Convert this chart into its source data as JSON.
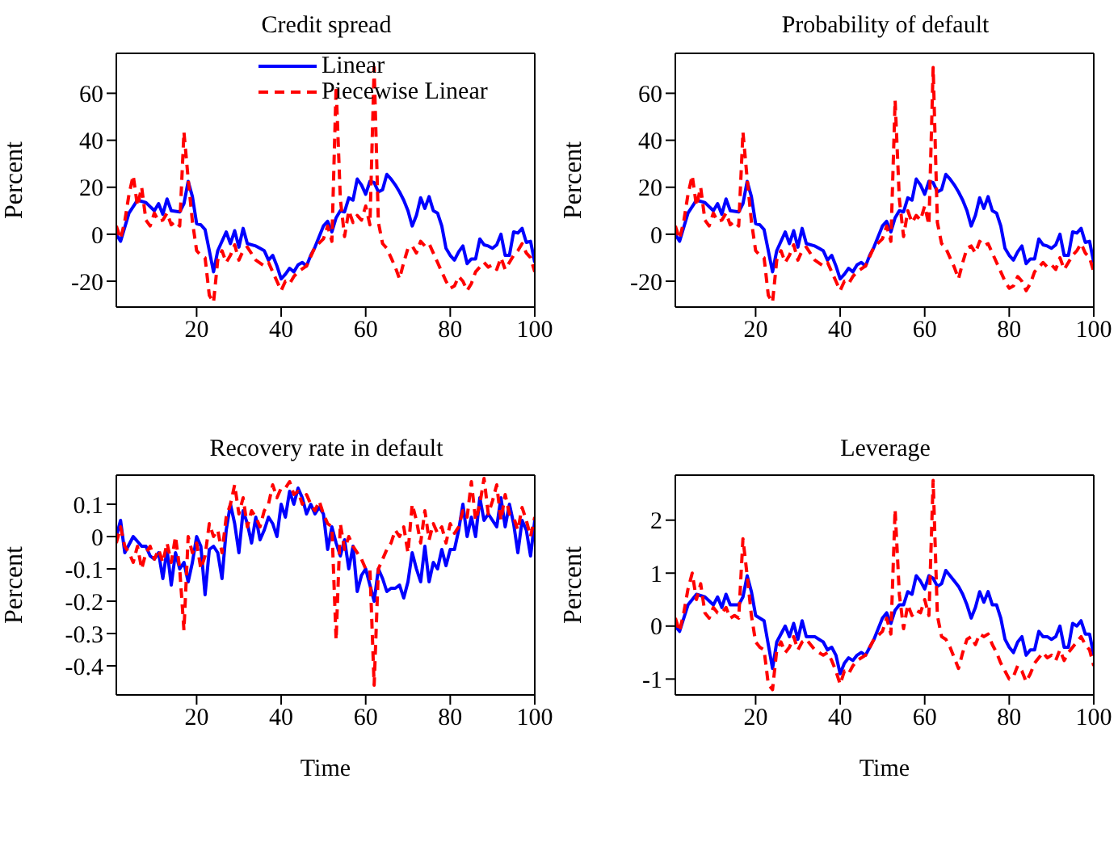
{
  "chart_data": [
    {
      "type": "line",
      "title": "Credit spread",
      "ylabel": "Percent",
      "xlim": [
        1,
        100
      ],
      "xticks": [
        20,
        40,
        60,
        80,
        100
      ],
      "ylim": [
        -31,
        77
      ],
      "yticks": [
        -20,
        0,
        20,
        40,
        60
      ],
      "legend": "top",
      "series": [
        {
          "name": "Linear",
          "color": "#0000ff",
          "line_style": "solid",
          "x": [
            1,
            2,
            4,
            6,
            8,
            10,
            11,
            12,
            13,
            14,
            16,
            17,
            18,
            19,
            20,
            21,
            22,
            24,
            25,
            27,
            28,
            29,
            30,
            31,
            32,
            34,
            35,
            36,
            37,
            38,
            39,
            40,
            41,
            42,
            43,
            44,
            45,
            46,
            47,
            48,
            50,
            51,
            52,
            53,
            54,
            55,
            56,
            57,
            58,
            59,
            60,
            61,
            62,
            63,
            64,
            65,
            66,
            67,
            68,
            69,
            70,
            71,
            72,
            73,
            74,
            75,
            76,
            77,
            78,
            79,
            80,
            81,
            82,
            83,
            84,
            85,
            86,
            87,
            88,
            89,
            90,
            91,
            92,
            93,
            94,
            95,
            96,
            97,
            98,
            99,
            100
          ],
          "values": [
            0,
            -3,
            9,
            14.5,
            13.5,
            10,
            13,
            8.5,
            15,
            10,
            9.5,
            13,
            22.5,
            16,
            4.5,
            4,
            2,
            -16,
            -7,
            1,
            -4,
            1.5,
            -5.5,
            2.5,
            -4,
            -5,
            -6,
            -7,
            -11,
            -9,
            -13.5,
            -19,
            -17,
            -14.5,
            -16,
            -13,
            -12,
            -13.5,
            -9,
            -5.5,
            3.5,
            5.5,
            1,
            7,
            10,
            9.5,
            15.5,
            14.5,
            23.5,
            21,
            17,
            22.5,
            22,
            18,
            19,
            25.5,
            23.5,
            21,
            18,
            14.5,
            10,
            3.5,
            8,
            15.5,
            11,
            16,
            10,
            9,
            3.5,
            -6,
            -9,
            -11,
            -7.5,
            -5,
            -12.5,
            -10.5,
            -10.5,
            -2,
            -4.5,
            -5,
            -6,
            -4.5,
            0,
            -9,
            -9,
            1,
            0.5,
            2.5,
            -3.5,
            -3,
            -12
          ]
        },
        {
          "name": "Piecewise Linear",
          "color": "#ff0000",
          "line_style": "dashed",
          "x": [
            1,
            2,
            3,
            4,
            5,
            6,
            7,
            8,
            9,
            10,
            11,
            12,
            13,
            14,
            15,
            16,
            17,
            18,
            19,
            20,
            21,
            22,
            23,
            24,
            25,
            26,
            27,
            28,
            29,
            30,
            31,
            32,
            34,
            36,
            37,
            38,
            39,
            40,
            41,
            42,
            43,
            44,
            46,
            48,
            50,
            51,
            52,
            53,
            54,
            55,
            56,
            57,
            58,
            59,
            60,
            61,
            62,
            63,
            64,
            65,
            66,
            67,
            68,
            69,
            70,
            71,
            72,
            73,
            74,
            75,
            76,
            77,
            78,
            79,
            80,
            81,
            82,
            83,
            84,
            85,
            86,
            87,
            88,
            89,
            90,
            91,
            92,
            93,
            94,
            95,
            96,
            97,
            98,
            99,
            100
          ],
          "values": [
            3.5,
            -2,
            5.5,
            17,
            25,
            12,
            20,
            6,
            3.5,
            9,
            5.5,
            6,
            9,
            4,
            5.5,
            3.5,
            43.5,
            23.5,
            5.5,
            -7,
            -9,
            -10,
            -26,
            -29,
            -11,
            -7,
            -12,
            -9,
            -4.5,
            -11,
            -7,
            -5.5,
            -11,
            -13.5,
            -12,
            -16,
            -20,
            -24,
            -20,
            -21,
            -18,
            -16,
            -13.5,
            -5.5,
            -2,
            3.5,
            -3,
            63,
            15,
            -1,
            10,
            5,
            8,
            6,
            12,
            4,
            71,
            5,
            -4,
            -6,
            -10,
            -14,
            -19,
            -12,
            -6,
            -5,
            -8,
            -3,
            -5,
            -4,
            -8,
            -12,
            -16,
            -20,
            -23,
            -22,
            -18,
            -20,
            -24,
            -21,
            -16,
            -14,
            -12,
            -14,
            -13,
            -15,
            -10,
            -15,
            -12,
            -9,
            -7,
            -4,
            -8,
            -10,
            -16
          ]
        }
      ]
    },
    {
      "type": "line",
      "title": "Probability of default",
      "ylabel": "Percent",
      "xlim": [
        1,
        100
      ],
      "xticks": [
        20,
        40,
        60,
        80,
        100
      ],
      "ylim": [
        -31,
        77
      ],
      "yticks": [
        -20,
        0,
        20,
        40,
        60
      ],
      "series": [
        {
          "color": "#0000ff",
          "line_style": "solid",
          "x": [
            1,
            2,
            4,
            6,
            8,
            10,
            11,
            12,
            13,
            14,
            16,
            17,
            18,
            19,
            20,
            21,
            22,
            24,
            25,
            27,
            28,
            29,
            30,
            31,
            32,
            34,
            35,
            36,
            37,
            38,
            39,
            40,
            41,
            42,
            43,
            44,
            45,
            46,
            47,
            48,
            50,
            51,
            52,
            53,
            54,
            55,
            56,
            57,
            58,
            59,
            60,
            61,
            62,
            63,
            64,
            65,
            66,
            67,
            68,
            69,
            70,
            71,
            72,
            73,
            74,
            75,
            76,
            77,
            78,
            79,
            80,
            81,
            82,
            83,
            84,
            85,
            86,
            87,
            88,
            89,
            90,
            91,
            92,
            93,
            94,
            95,
            96,
            97,
            98,
            99,
            100
          ],
          "values": [
            0,
            -3,
            9,
            14.5,
            13.5,
            10,
            13,
            8.5,
            15,
            10,
            9.5,
            13,
            22.5,
            16,
            4.5,
            4,
            2,
            -16,
            -7,
            1,
            -4,
            1.5,
            -5.5,
            2.5,
            -4,
            -5,
            -6,
            -7,
            -11,
            -9,
            -13.5,
            -19,
            -17,
            -14.5,
            -16,
            -13,
            -12,
            -13.5,
            -9,
            -5.5,
            3.5,
            5.5,
            1,
            7,
            10,
            9.5,
            15.5,
            14.5,
            23.5,
            21,
            17,
            22.5,
            22,
            18,
            19,
            25.5,
            23.5,
            21,
            18,
            14.5,
            10,
            3.5,
            8,
            15.5,
            11,
            16,
            10,
            9,
            3.5,
            -6,
            -9,
            -11,
            -7.5,
            -5,
            -12.5,
            -10.5,
            -10.5,
            -2,
            -4.5,
            -5,
            -6,
            -4.5,
            0,
            -9,
            -9,
            1,
            0.5,
            2.5,
            -3.5,
            -3,
            -12
          ]
        },
        {
          "color": "#ff0000",
          "line_style": "dashed",
          "x": [
            1,
            2,
            3,
            4,
            5,
            6,
            7,
            8,
            9,
            10,
            11,
            12,
            13,
            14,
            15,
            16,
            17,
            18,
            19,
            20,
            21,
            22,
            23,
            24,
            25,
            26,
            27,
            28,
            29,
            30,
            31,
            32,
            34,
            36,
            37,
            38,
            39,
            40,
            41,
            42,
            43,
            44,
            46,
            48,
            50,
            51,
            52,
            53,
            54,
            55,
            56,
            57,
            58,
            59,
            60,
            61,
            62,
            63,
            64,
            65,
            66,
            67,
            68,
            69,
            70,
            71,
            72,
            73,
            74,
            75,
            76,
            77,
            78,
            79,
            80,
            81,
            82,
            83,
            84,
            85,
            86,
            87,
            88,
            89,
            90,
            91,
            92,
            93,
            94,
            95,
            96,
            97,
            98,
            99,
            100
          ],
          "values": [
            3.5,
            -2,
            5.5,
            17,
            25,
            12,
            20,
            6,
            3.5,
            9,
            5.5,
            6,
            9,
            4,
            5.5,
            3.5,
            43.5,
            23.5,
            5.5,
            -7,
            -9,
            -10,
            -26,
            -29,
            -11,
            -7,
            -12,
            -9,
            -4.5,
            -11,
            -7,
            -5.5,
            -11,
            -13.5,
            -12,
            -16,
            -20,
            -24,
            -20,
            -21,
            -18,
            -16,
            -13.5,
            -5.5,
            -2,
            3.5,
            -3,
            57,
            15,
            -1,
            10,
            5,
            8,
            6,
            12,
            4,
            71,
            5,
            -4,
            -6,
            -10,
            -14,
            -19,
            -12,
            -6,
            -5,
            -8,
            -3,
            -5,
            -4,
            -8,
            -12,
            -16,
            -20,
            -23,
            -22,
            -18,
            -20,
            -24,
            -21,
            -16,
            -14,
            -12,
            -14,
            -13,
            -15,
            -10,
            -15,
            -12,
            -9,
            -7,
            -4,
            -8,
            -10,
            -16
          ]
        }
      ]
    },
    {
      "type": "line",
      "title": "Recovery rate in default",
      "xlabel": "Time",
      "ylabel": "Percent",
      "xlim": [
        1,
        100
      ],
      "xticks": [
        20,
        40,
        60,
        80,
        100
      ],
      "ylim": [
        -0.49,
        0.19
      ],
      "yticks": [
        -0.4,
        -0.3,
        -0.2,
        -0.1,
        0,
        0.1
      ],
      "series": [
        {
          "color": "#0000ff",
          "line_style": "solid",
          "x": [
            1,
            2,
            3,
            5,
            7,
            8,
            9,
            10,
            11,
            12,
            13,
            14,
            15,
            16,
            17,
            18,
            19,
            20,
            21,
            22,
            23,
            24,
            25,
            26,
            27,
            28,
            29,
            30,
            31,
            32,
            33,
            34,
            35,
            36,
            37,
            38,
            39,
            40,
            41,
            42,
            43,
            44,
            45,
            46,
            47,
            48,
            49,
            50,
            51,
            52,
            53,
            54,
            55,
            56,
            57,
            58,
            59,
            60,
            61,
            62,
            63,
            64,
            65,
            66,
            67,
            68,
            69,
            70,
            71,
            72,
            73,
            74,
            75,
            76,
            77,
            78,
            79,
            80,
            81,
            82,
            83,
            84,
            85,
            86,
            87,
            88,
            89,
            90,
            91,
            92,
            93,
            94,
            95,
            96,
            97,
            98,
            99,
            100
          ],
          "values": [
            0,
            0.05,
            -0.05,
            0,
            -0.03,
            -0.03,
            -0.06,
            -0.07,
            -0.05,
            -0.13,
            -0.04,
            -0.15,
            -0.05,
            -0.1,
            -0.08,
            -0.14,
            -0.08,
            0,
            -0.03,
            -0.18,
            -0.04,
            -0.03,
            -0.05,
            -0.13,
            0.02,
            0.1,
            0.04,
            -0.05,
            0.08,
            0.04,
            -0.02,
            0.06,
            -0.01,
            0.02,
            0.06,
            0.04,
            0,
            0.1,
            0.06,
            0.14,
            0.1,
            0.15,
            0.12,
            0.07,
            0.1,
            0.07,
            0.09,
            0.07,
            -0.04,
            0.03,
            -0.02,
            -0.06,
            -0.01,
            -0.1,
            -0.03,
            -0.17,
            -0.12,
            -0.1,
            -0.15,
            -0.2,
            -0.1,
            -0.13,
            -0.17,
            -0.16,
            -0.16,
            -0.15,
            -0.19,
            -0.14,
            -0.05,
            -0.1,
            -0.14,
            -0.03,
            -0.14,
            -0.08,
            -0.1,
            -0.04,
            -0.09,
            -0.04,
            -0.04,
            0.02,
            0.1,
            0,
            0.06,
            0,
            0.12,
            0.05,
            0.07,
            0.05,
            0.03,
            0.12,
            0.03,
            0.1,
            0.04,
            -0.05,
            0.05,
            0.02,
            -0.06,
            0.05
          ]
        },
        {
          "color": "#ff0000",
          "line_style": "dashed",
          "x": [
            1,
            2,
            3,
            4,
            5,
            6,
            7,
            8,
            9,
            10,
            11,
            12,
            13,
            14,
            15,
            16,
            17,
            18,
            19,
            20,
            21,
            22,
            23,
            24,
            25,
            26,
            27,
            28,
            29,
            30,
            31,
            32,
            33,
            34,
            35,
            36,
            37,
            38,
            39,
            40,
            41,
            42,
            43,
            44,
            45,
            46,
            47,
            48,
            49,
            50,
            51,
            52,
            53,
            54,
            55,
            56,
            57,
            58,
            59,
            60,
            61,
            62,
            63,
            64,
            65,
            66,
            67,
            68,
            69,
            70,
            71,
            72,
            73,
            74,
            75,
            76,
            77,
            78,
            79,
            80,
            81,
            82,
            83,
            84,
            85,
            86,
            87,
            88,
            89,
            90,
            91,
            92,
            93,
            94,
            95,
            96,
            97,
            98,
            99,
            100
          ],
          "values": [
            -0.02,
            0.03,
            -0.03,
            -0.05,
            -0.08,
            -0.03,
            -0.1,
            -0.05,
            -0.03,
            -0.07,
            -0.04,
            -0.08,
            -0.02,
            -0.08,
            0,
            -0.1,
            -0.29,
            0,
            -0.05,
            -0.02,
            -0.1,
            -0.06,
            0.04,
            0,
            0.02,
            -0.05,
            0.06,
            0.1,
            0.16,
            0.07,
            0.12,
            0.03,
            0.08,
            0.06,
            0.03,
            0.08,
            0.1,
            0.16,
            0.12,
            0.15,
            0.15,
            0.17,
            0.13,
            0.14,
            0.1,
            0.13,
            0.1,
            0.08,
            0.11,
            0.07,
            0.04,
            0.03,
            -0.32,
            0.04,
            -0.04,
            0,
            -0.03,
            -0.05,
            -0.07,
            -0.1,
            -0.1,
            -0.46,
            -0.1,
            -0.07,
            -0.04,
            -0.02,
            0.02,
            0,
            0.03,
            -0.05,
            0.1,
            0.05,
            -0.02,
            0.08,
            -0.01,
            0.04,
            0.01,
            0.03,
            -0.02,
            0.04,
            0.01,
            0.03,
            0.08,
            0.06,
            0.17,
            0.05,
            0.1,
            0.18,
            0.07,
            0.11,
            0.16,
            0.05,
            0.13,
            0.07,
            0.06,
            0.02,
            0.09,
            0.05,
            0,
            0.06
          ]
        }
      ]
    },
    {
      "type": "line",
      "title": "Leverage",
      "xlabel": "Time",
      "ylabel": "Percent",
      "xlim": [
        1,
        100
      ],
      "xticks": [
        20,
        40,
        60,
        80,
        100
      ],
      "ylim": [
        -1.3,
        2.85
      ],
      "yticks": [
        -1,
        0,
        1,
        2
      ],
      "series": [
        {
          "color": "#0000ff",
          "line_style": "solid",
          "x": [
            1,
            2,
            4,
            6,
            8,
            10,
            11,
            12,
            13,
            14,
            16,
            17,
            18,
            19,
            20,
            21,
            22,
            24,
            25,
            27,
            28,
            29,
            30,
            31,
            32,
            34,
            35,
            36,
            37,
            38,
            39,
            40,
            41,
            42,
            43,
            44,
            45,
            46,
            47,
            48,
            50,
            51,
            52,
            53,
            54,
            55,
            56,
            57,
            58,
            59,
            60,
            61,
            62,
            63,
            64,
            65,
            66,
            67,
            68,
            69,
            70,
            71,
            72,
            73,
            74,
            75,
            76,
            77,
            78,
            79,
            80,
            81,
            82,
            83,
            84,
            85,
            86,
            87,
            88,
            89,
            90,
            91,
            92,
            93,
            94,
            95,
            96,
            97,
            98,
            99,
            100
          ],
          "values": [
            0,
            -0.1,
            0.4,
            0.6,
            0.55,
            0.4,
            0.55,
            0.35,
            0.6,
            0.4,
            0.4,
            0.55,
            0.95,
            0.65,
            0.2,
            0.15,
            0.1,
            -0.8,
            -0.3,
            0,
            -0.2,
            0.05,
            -0.25,
            0.1,
            -0.2,
            -0.2,
            -0.25,
            -0.3,
            -0.45,
            -0.4,
            -0.55,
            -0.9,
            -0.7,
            -0.6,
            -0.65,
            -0.55,
            -0.5,
            -0.55,
            -0.4,
            -0.25,
            0.15,
            0.25,
            0.05,
            0.3,
            0.4,
            0.4,
            0.65,
            0.6,
            0.95,
            0.85,
            0.7,
            0.95,
            0.9,
            0.75,
            0.8,
            1.05,
            0.95,
            0.85,
            0.75,
            0.6,
            0.4,
            0.15,
            0.35,
            0.65,
            0.45,
            0.65,
            0.4,
            0.4,
            0.15,
            -0.25,
            -0.4,
            -0.5,
            -0.3,
            -0.2,
            -0.55,
            -0.45,
            -0.45,
            -0.1,
            -0.2,
            -0.2,
            -0.25,
            -0.2,
            0,
            -0.4,
            -0.4,
            0.05,
            0,
            0.1,
            -0.15,
            -0.15,
            -0.55
          ]
        },
        {
          "color": "#ff0000",
          "line_style": "dashed",
          "x": [
            1,
            2,
            3,
            4,
            5,
            6,
            7,
            8,
            9,
            10,
            11,
            12,
            13,
            14,
            15,
            16,
            17,
            18,
            19,
            20,
            21,
            22,
            23,
            24,
            25,
            26,
            27,
            28,
            29,
            30,
            31,
            32,
            34,
            36,
            37,
            38,
            39,
            40,
            41,
            42,
            43,
            44,
            46,
            48,
            50,
            51,
            52,
            53,
            54,
            55,
            56,
            57,
            58,
            59,
            60,
            61,
            62,
            63,
            64,
            65,
            66,
            67,
            68,
            69,
            70,
            71,
            72,
            73,
            74,
            75,
            76,
            77,
            78,
            79,
            80,
            81,
            82,
            83,
            84,
            85,
            86,
            87,
            88,
            89,
            90,
            91,
            92,
            93,
            94,
            95,
            96,
            97,
            98,
            99,
            100
          ],
          "values": [
            0.15,
            -0.1,
            0.25,
            0.7,
            1,
            0.5,
            0.8,
            0.25,
            0.15,
            0.35,
            0.25,
            0.25,
            0.35,
            0.15,
            0.2,
            0.15,
            1.65,
            0.95,
            0.2,
            -0.3,
            -0.4,
            -0.45,
            -1.1,
            -1.2,
            -0.45,
            -0.3,
            -0.5,
            -0.4,
            -0.2,
            -0.45,
            -0.3,
            -0.25,
            -0.45,
            -0.55,
            -0.5,
            -0.65,
            -0.85,
            -1.1,
            -0.85,
            -0.9,
            -0.75,
            -0.65,
            -0.55,
            -0.25,
            -0.1,
            0.15,
            -0.15,
            2.2,
            0.6,
            -0.05,
            0.4,
            0.2,
            0.3,
            0.25,
            0.5,
            0.2,
            2.75,
            0.2,
            -0.2,
            -0.25,
            -0.4,
            -0.6,
            -0.8,
            -0.5,
            -0.25,
            -0.2,
            -0.35,
            -0.15,
            -0.2,
            -0.15,
            -0.35,
            -0.5,
            -0.7,
            -0.85,
            -1,
            -0.95,
            -0.75,
            -0.85,
            -1.05,
            -0.9,
            -0.7,
            -0.6,
            -0.5,
            -0.6,
            -0.55,
            -0.65,
            -0.45,
            -0.65,
            -0.5,
            -0.4,
            -0.3,
            -0.2,
            -0.35,
            -0.45,
            -0.75
          ]
        }
      ]
    }
  ]
}
